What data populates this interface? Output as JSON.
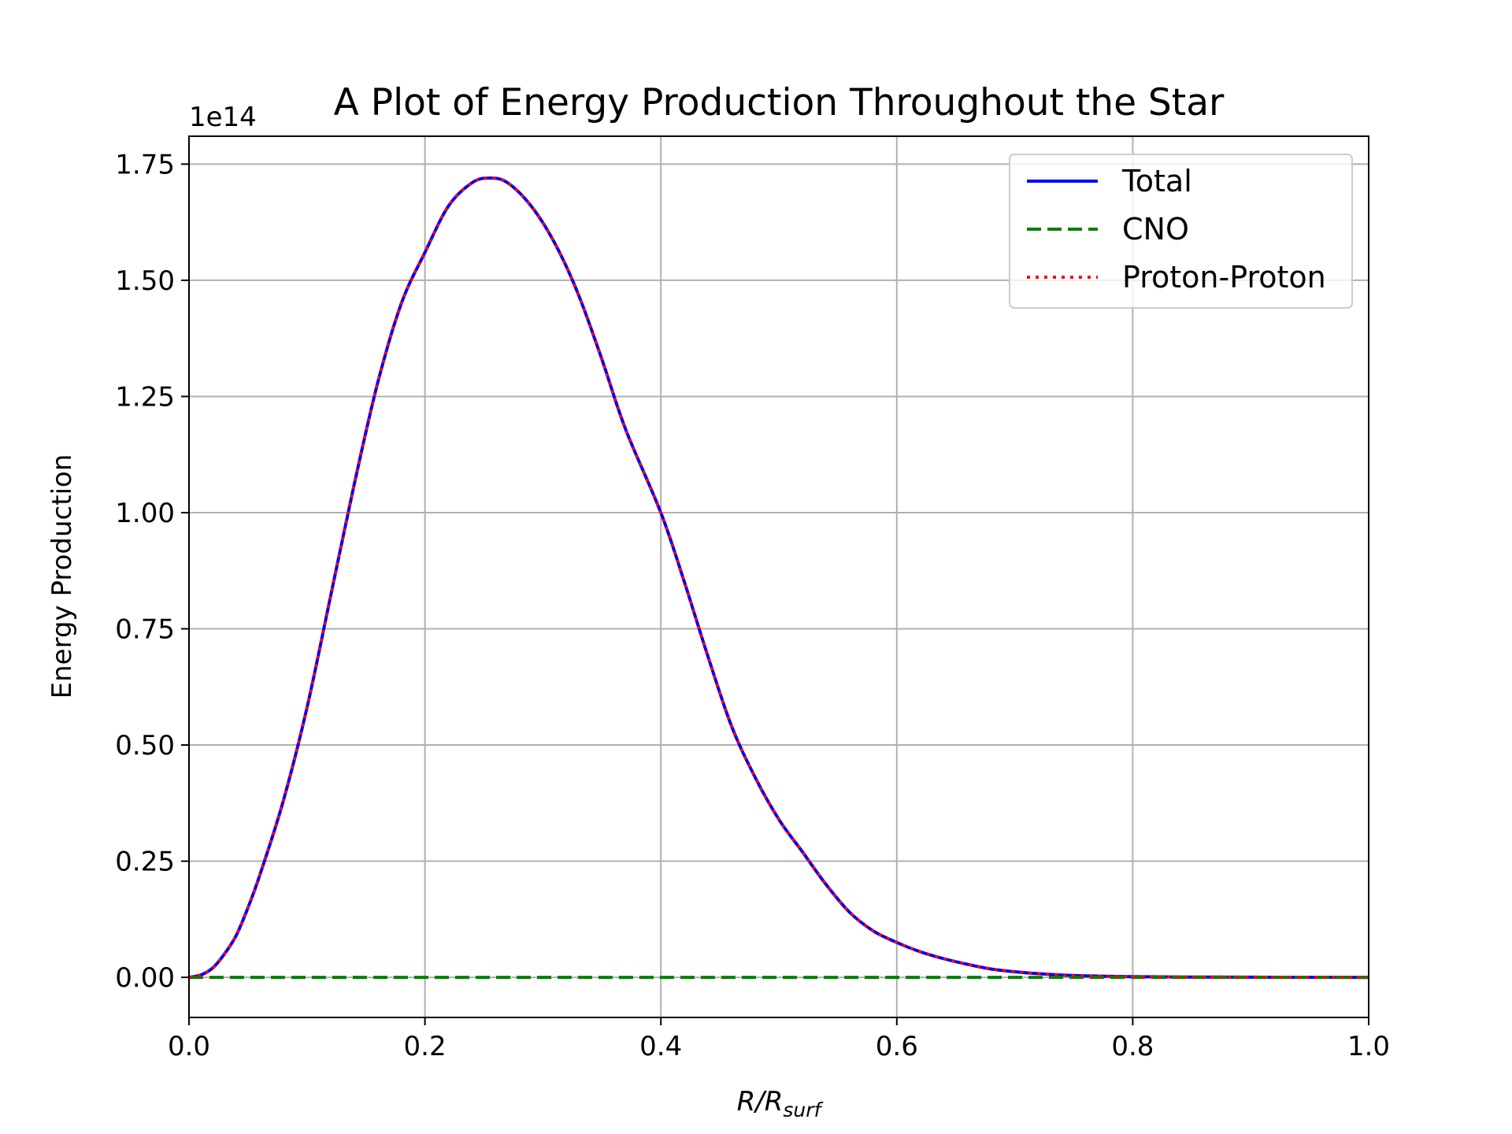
{
  "chart_data": {
    "type": "line",
    "title": "A Plot of Energy Production Throughout the Star",
    "xlabel": "R/R",
    "xlabel_subscript": "surf",
    "ylabel": "Energy Production",
    "y_offset_label": "1e14",
    "xlim": [
      0.0,
      1.0
    ],
    "ylim": [
      -0.0863,
      1.81
    ],
    "x_ticks": [
      "0.0",
      "0.2",
      "0.4",
      "0.6",
      "0.8",
      "1.0"
    ],
    "y_ticks": [
      "0.00",
      "0.25",
      "0.50",
      "0.75",
      "1.00",
      "1.25",
      "1.50",
      "1.75"
    ],
    "grid": true,
    "legend_position": "top-right",
    "series": [
      {
        "name": "Total",
        "color": "#0000ff",
        "style": "solid",
        "x": [
          0,
          0.01,
          0.02,
          0.03,
          0.04,
          0.05,
          0.06,
          0.08,
          0.1,
          0.12,
          0.14,
          0.16,
          0.18,
          0.2,
          0.22,
          0.24,
          0.255,
          0.27,
          0.29,
          0.31,
          0.33,
          0.35,
          0.37,
          0.4,
          0.42,
          0.44,
          0.46,
          0.48,
          0.5,
          0.52,
          0.54,
          0.56,
          0.58,
          0.6,
          0.62,
          0.64,
          0.66,
          0.68,
          0.7,
          0.72,
          0.75,
          0.8,
          0.85,
          0.9,
          0.95,
          1.0
        ],
        "y": [
          0,
          0.005,
          0.02,
          0.05,
          0.09,
          0.15,
          0.22,
          0.38,
          0.58,
          0.82,
          1.06,
          1.28,
          1.45,
          1.56,
          1.66,
          1.71,
          1.72,
          1.71,
          1.66,
          1.58,
          1.47,
          1.33,
          1.18,
          1.0,
          0.85,
          0.69,
          0.54,
          0.43,
          0.34,
          0.27,
          0.2,
          0.14,
          0.1,
          0.075,
          0.055,
          0.04,
          0.028,
          0.018,
          0.012,
          0.008,
          0.004,
          0.0015,
          0.0007,
          0.0003,
          0.0001,
          0.0
        ]
      },
      {
        "name": "CNO",
        "color": "#008000",
        "style": "dashed",
        "x": [
          0.0,
          1.0
        ],
        "y": [
          0.0,
          0.0
        ]
      },
      {
        "name": "Proton-Proton",
        "color": "#ff0000",
        "style": "dotted",
        "x": [
          0,
          0.01,
          0.02,
          0.03,
          0.04,
          0.05,
          0.06,
          0.08,
          0.1,
          0.12,
          0.14,
          0.16,
          0.18,
          0.2,
          0.22,
          0.24,
          0.255,
          0.27,
          0.29,
          0.31,
          0.33,
          0.35,
          0.37,
          0.4,
          0.42,
          0.44,
          0.46,
          0.48,
          0.5,
          0.52,
          0.54,
          0.56,
          0.58,
          0.6,
          0.62,
          0.64,
          0.66,
          0.68,
          0.7,
          0.72,
          0.75,
          0.8,
          0.85,
          0.9,
          0.95,
          1.0
        ],
        "y": [
          0,
          0.005,
          0.02,
          0.05,
          0.09,
          0.15,
          0.22,
          0.38,
          0.58,
          0.82,
          1.06,
          1.28,
          1.45,
          1.56,
          1.66,
          1.71,
          1.72,
          1.71,
          1.66,
          1.58,
          1.47,
          1.33,
          1.18,
          1.0,
          0.85,
          0.69,
          0.54,
          0.43,
          0.34,
          0.27,
          0.2,
          0.14,
          0.1,
          0.075,
          0.055,
          0.04,
          0.028,
          0.018,
          0.012,
          0.008,
          0.004,
          0.0015,
          0.0007,
          0.0003,
          0.0001,
          0.0
        ]
      }
    ]
  }
}
